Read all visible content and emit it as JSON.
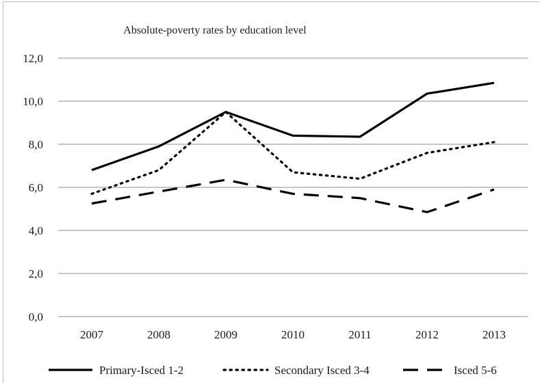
{
  "chart_data": {
    "type": "line",
    "title": "Absolute-poverty rates by education level",
    "xlabel": "",
    "ylabel": "",
    "categories": [
      "2007",
      "2008",
      "2009",
      "2010",
      "2011",
      "2012",
      "2013"
    ],
    "ylim": [
      0,
      12
    ],
    "yticks": [
      "0,0",
      "2,0",
      "4,0",
      "6,0",
      "8,0",
      "10,0",
      "12,0"
    ],
    "grid": true,
    "legend_position": "bottom",
    "series": [
      {
        "name": "Primary-Isced 1-2",
        "values": [
          6.8,
          7.9,
          9.5,
          8.4,
          8.35,
          10.35,
          10.85
        ],
        "color": "#000000",
        "style": "solid"
      },
      {
        "name": "Secondary Isced 3-4",
        "values": [
          5.7,
          6.8,
          9.5,
          6.7,
          6.4,
          7.6,
          8.1
        ],
        "color": "#000000",
        "style": "dotted"
      },
      {
        "name": "Isced 5-6",
        "values": [
          5.25,
          5.8,
          6.35,
          5.7,
          5.5,
          4.85,
          5.9
        ],
        "color": "#000000",
        "style": "dashed"
      }
    ]
  }
}
